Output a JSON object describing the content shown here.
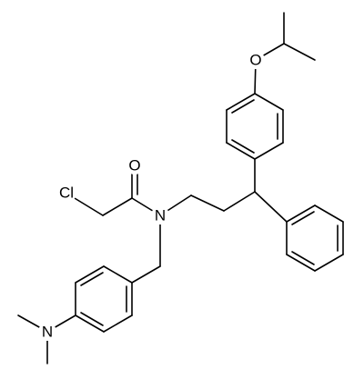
{
  "atoms": [
    "O",
    "Cl",
    "N",
    "O",
    "N"
  ]
}
